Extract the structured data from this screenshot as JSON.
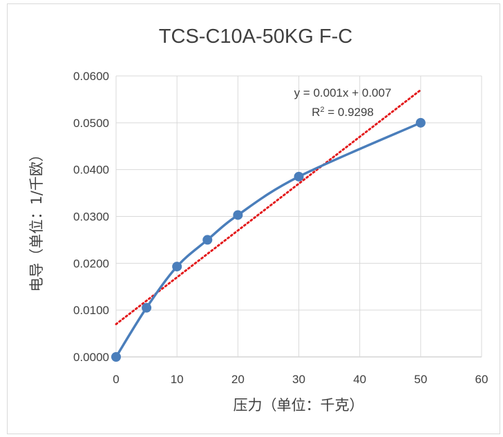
{
  "chart_data": {
    "type": "scatter",
    "title": "TCS-C10A-50KG F-C",
    "xlabel": "压力（单位：千克）",
    "ylabel": "电导（单位：1/千欧）",
    "xlim": [
      0,
      60
    ],
    "ylim": [
      0,
      0.06
    ],
    "x_ticks": [
      "0",
      "10",
      "20",
      "30",
      "40",
      "50",
      "60"
    ],
    "y_ticks": [
      "0.0000",
      "0.0100",
      "0.0200",
      "0.0300",
      "0.0400",
      "0.0500",
      "0.0600"
    ],
    "grid": true,
    "series": [
      {
        "x": [
          0,
          5,
          10,
          15,
          20,
          30,
          50
        ],
        "y": [
          0.0,
          0.0105,
          0.0193,
          0.025,
          0.0303,
          0.0385,
          0.05
        ],
        "color": "#4a7ebb",
        "smooth_line": true,
        "markers": true
      }
    ],
    "trendline": {
      "type": "linear",
      "slope": 0.001,
      "intercept": 0.007,
      "equation": "y = 0.001x + 0.007",
      "r2_label": "R",
      "r2_sup": "2",
      "r2_value": " = 0.9298",
      "color": "#e31a1c",
      "style": "dotted",
      "x_range": [
        0,
        50
      ]
    }
  }
}
